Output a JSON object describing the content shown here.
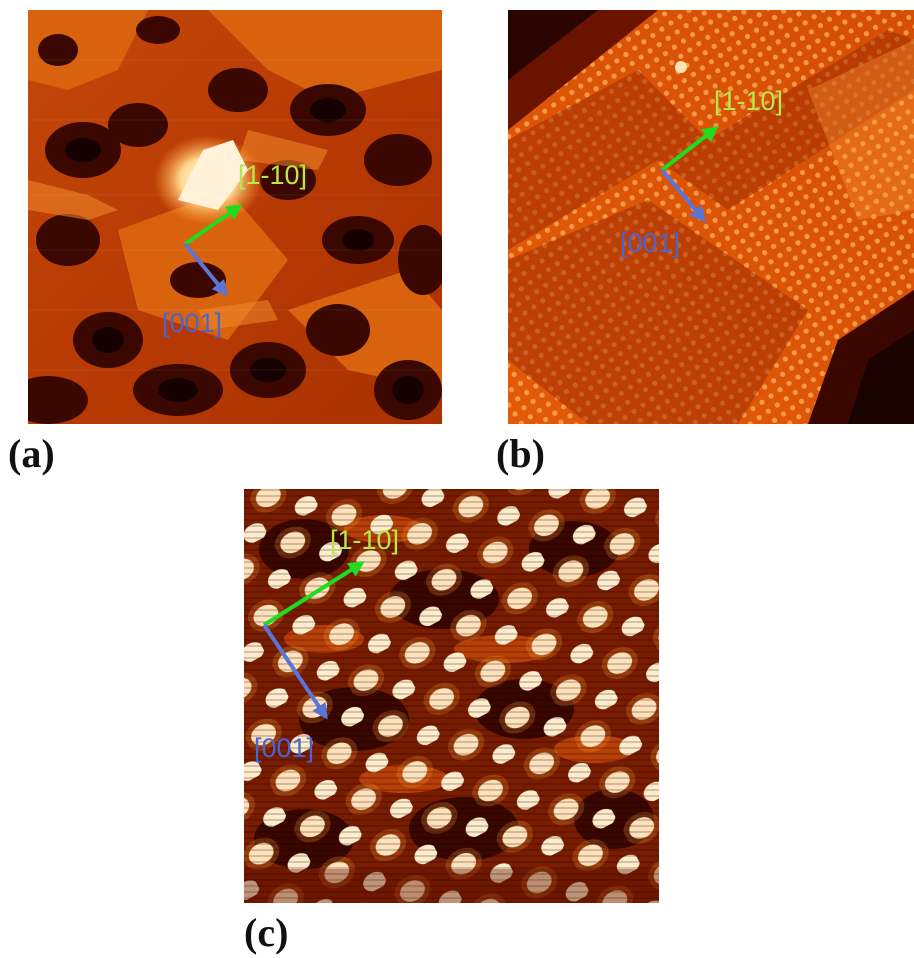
{
  "panels": [
    {
      "id": "a",
      "label": "(a)",
      "axis_a": "[1-10]",
      "axis_b": "[001]"
    },
    {
      "id": "b",
      "label": "(b)",
      "axis_a": "[1-10]",
      "axis_b": "[001]"
    },
    {
      "id": "c",
      "label": "(c)",
      "axis_a": "[1-10]",
      "axis_b": "[001]"
    }
  ],
  "colors": {
    "axis_1_10": "#1fdc1f",
    "axis_1_10_text": "#b6e84a",
    "axis_001": "#5a74d8",
    "axis_001_text": "#4a64d0",
    "stm_dark": "#1a0200",
    "stm_mid": "#b83a00",
    "stm_bright": "#ff8a1a",
    "stm_white": "#fff6e0"
  }
}
